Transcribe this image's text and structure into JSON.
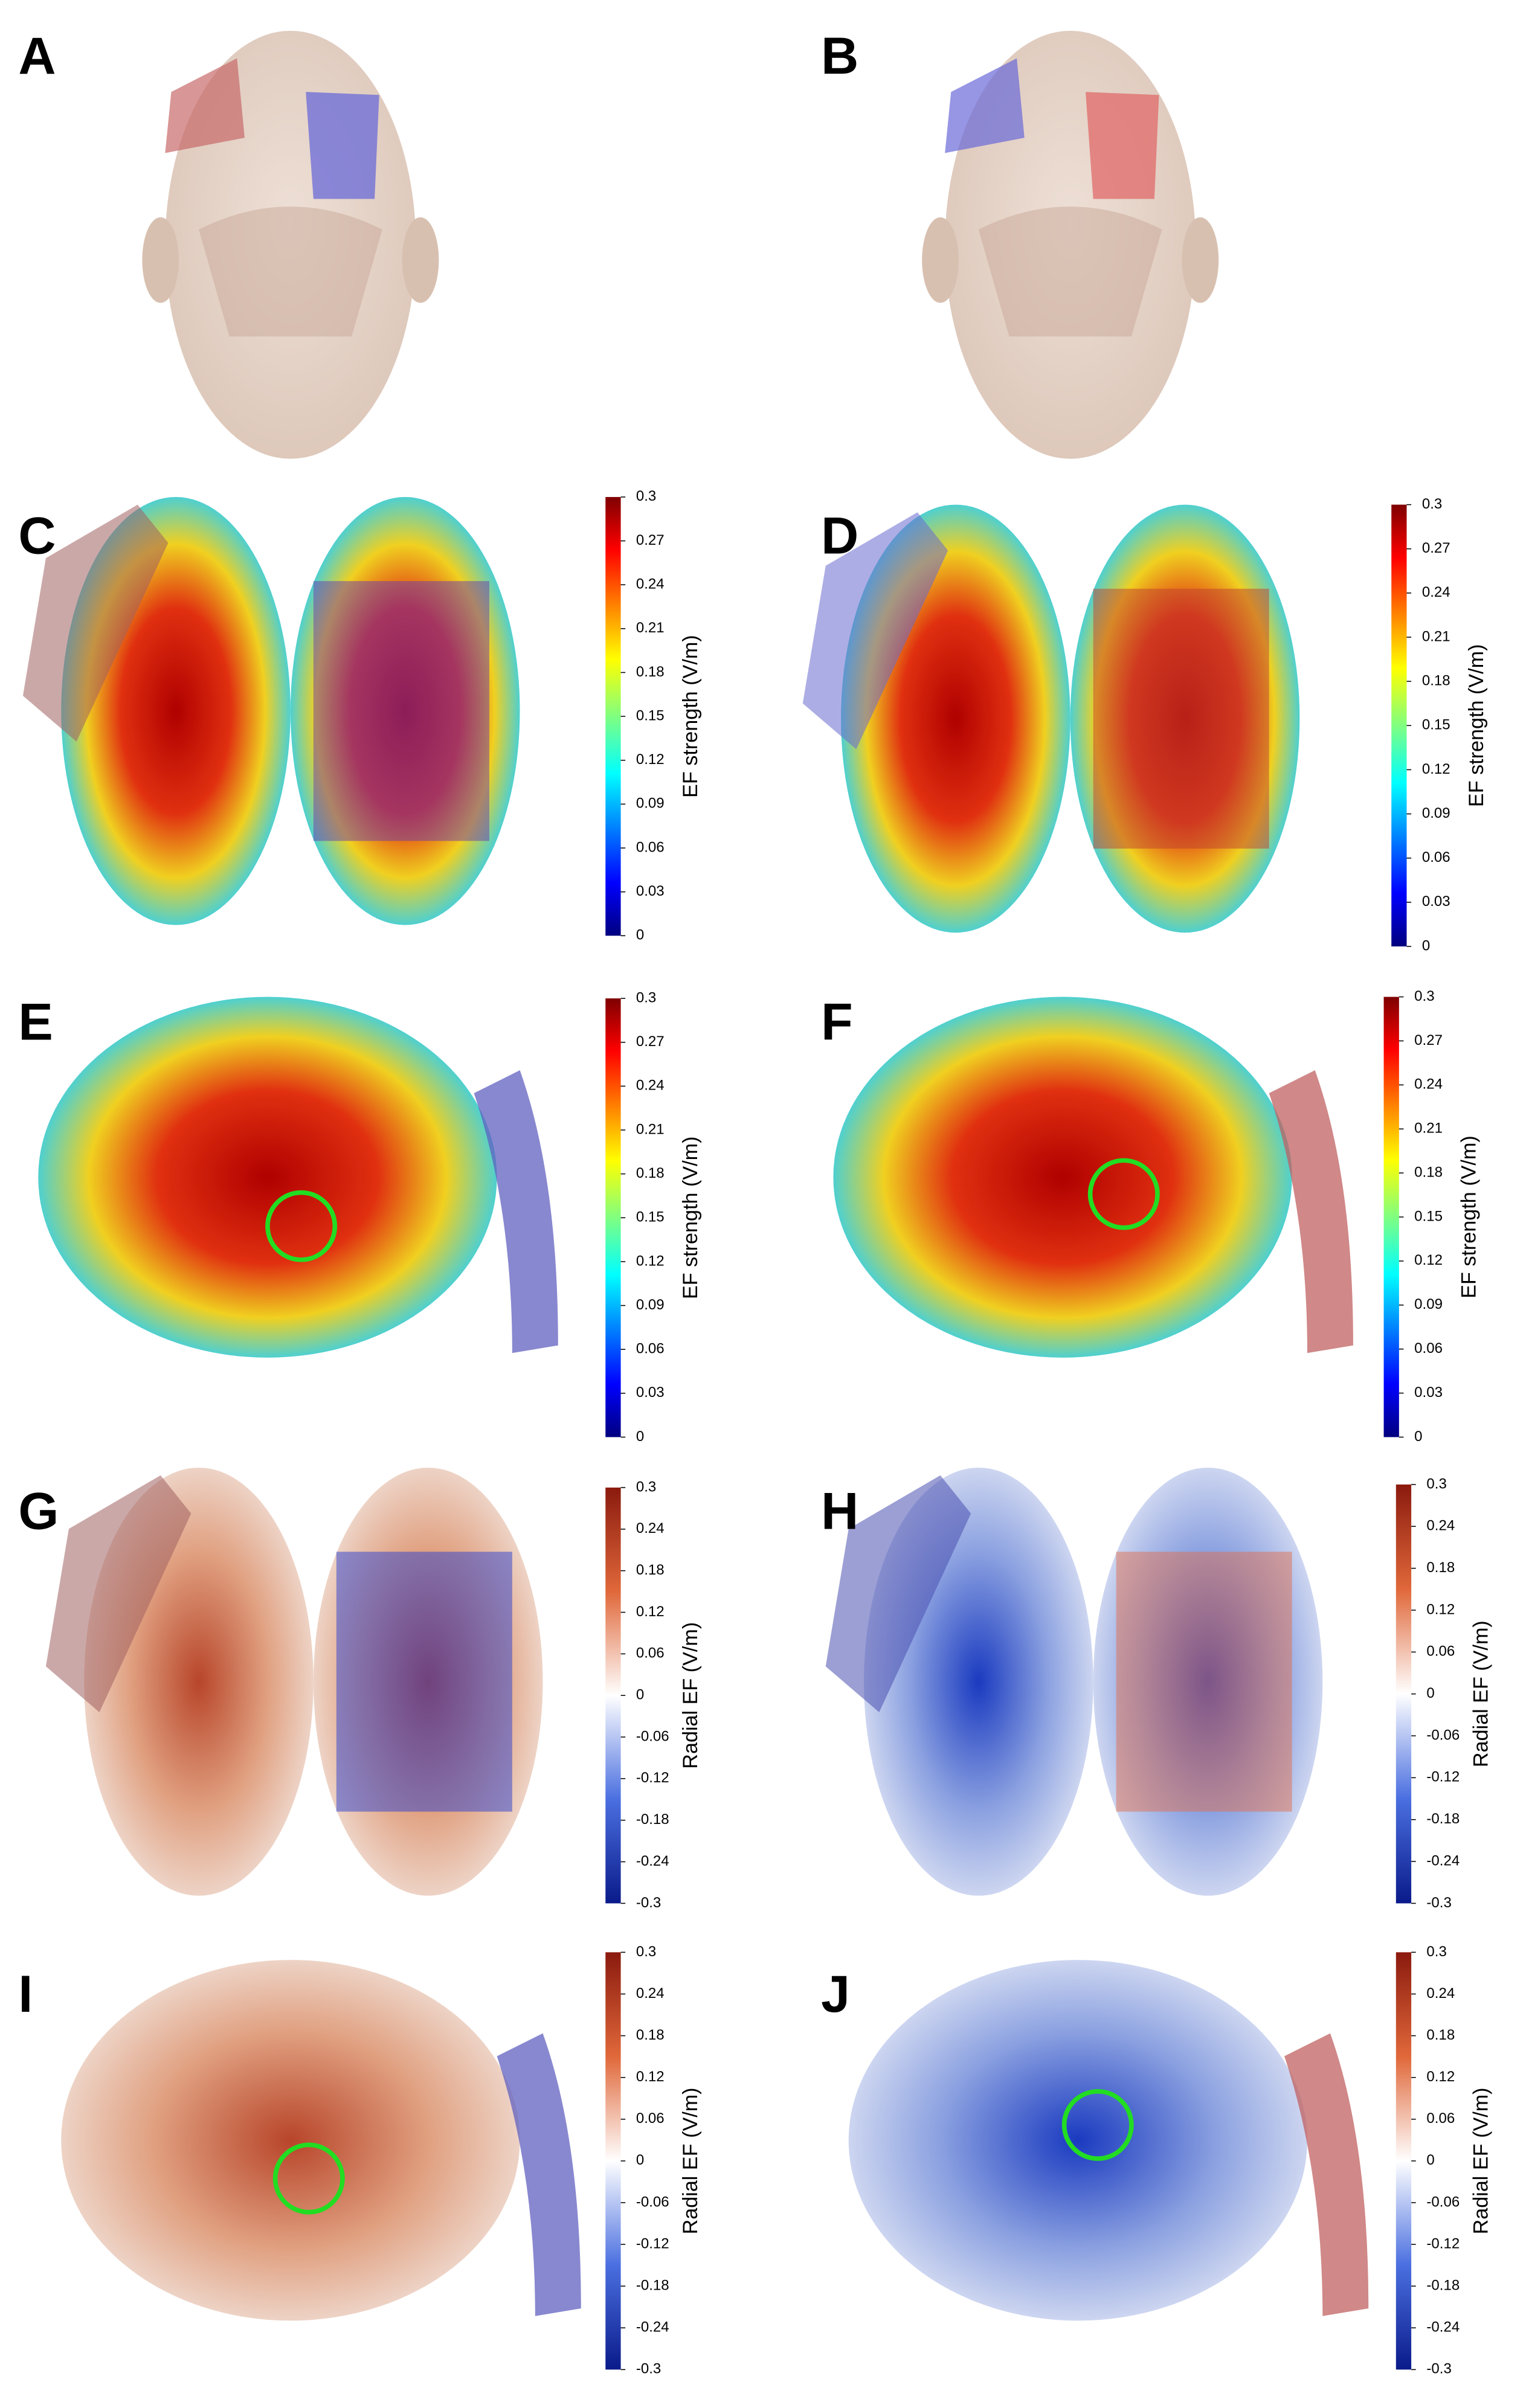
{
  "panels": [
    {
      "label": "A"
    },
    {
      "label": "B"
    },
    {
      "label": "C",
      "colorbar": {
        "title": "EF strength (V/m)",
        "colormap": "jet",
        "lim": [
          0,
          0.3
        ],
        "ticks": [
          0.3,
          0.27,
          0.24,
          0.21,
          0.18,
          0.15,
          0.12,
          0.09,
          0.06,
          0.03,
          0
        ]
      }
    },
    {
      "label": "D",
      "colorbar": {
        "title": "EF strength (V/m)",
        "colormap": "jet",
        "lim": [
          0,
          0.3
        ],
        "ticks": [
          0.3,
          0.27,
          0.24,
          0.21,
          0.18,
          0.15,
          0.12,
          0.09,
          0.06,
          0.03,
          0
        ]
      }
    },
    {
      "label": "E",
      "colorbar": {
        "title": "EF strength (V/m)",
        "colormap": "jet",
        "lim": [
          0,
          0.3
        ],
        "ticks": [
          0.3,
          0.27,
          0.24,
          0.21,
          0.18,
          0.15,
          0.12,
          0.09,
          0.06,
          0.03,
          0
        ]
      }
    },
    {
      "label": "F",
      "colorbar": {
        "title": "EF strength (V/m)",
        "colormap": "jet",
        "lim": [
          0,
          0.3
        ],
        "ticks": [
          0.3,
          0.27,
          0.24,
          0.21,
          0.18,
          0.15,
          0.12,
          0.09,
          0.06,
          0.03,
          0
        ]
      }
    },
    {
      "label": "G",
      "colorbar": {
        "title": "Radial EF (V/m)",
        "colormap": "diverging",
        "lim": [
          -0.3,
          0.3
        ],
        "ticks": [
          0.3,
          0.24,
          0.18,
          0.12,
          0.06,
          0,
          -0.06,
          -0.12,
          -0.18,
          -0.24,
          -0.3
        ]
      }
    },
    {
      "label": "H",
      "colorbar": {
        "title": "Radial EF (V/m)",
        "colormap": "diverging",
        "lim": [
          -0.3,
          0.3
        ],
        "ticks": [
          0.3,
          0.24,
          0.18,
          0.12,
          0.06,
          0,
          -0.06,
          -0.12,
          -0.18,
          -0.24,
          -0.3
        ]
      }
    },
    {
      "label": "I",
      "colorbar": {
        "title": "Radial EF (V/m)",
        "colormap": "diverging",
        "lim": [
          -0.3,
          0.3
        ],
        "ticks": [
          0.3,
          0.24,
          0.18,
          0.12,
          0.06,
          0,
          -0.06,
          -0.12,
          -0.18,
          -0.24,
          -0.3
        ]
      }
    },
    {
      "label": "J",
      "colorbar": {
        "title": "Radial EF (V/m)",
        "colormap": "diverging",
        "lim": [
          -0.3,
          0.3
        ],
        "ticks": [
          0.3,
          0.24,
          0.18,
          0.12,
          0.06,
          0,
          -0.06,
          -0.12,
          -0.18,
          -0.24,
          -0.3
        ]
      }
    }
  ]
}
